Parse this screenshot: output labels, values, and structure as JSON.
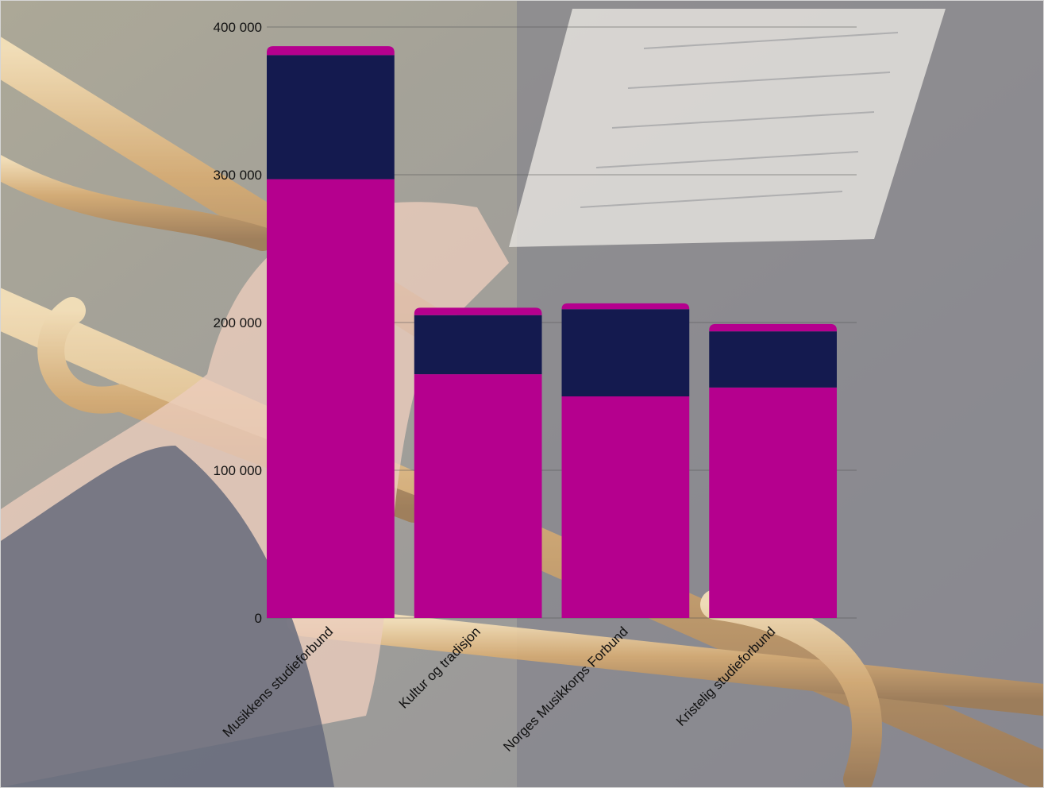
{
  "chart_data": {
    "type": "bar",
    "stacked": true,
    "background": "photo of a hand holding a brass trumpet with a music stand and sheet music, shown faded",
    "title": "",
    "xlabel": "",
    "ylabel": "",
    "categories": [
      "Musikkens studieforbund",
      "Kultur og tradisjon",
      "Norges Musikkorps Forbund",
      "Kristelig studieforbund"
    ],
    "series": [
      {
        "color": "#b5008e",
        "values": [
          297000,
          165000,
          150000,
          156000
        ]
      },
      {
        "color": "#141a4f",
        "values": [
          84000,
          40000,
          59000,
          38000
        ]
      },
      {
        "color": "#b5008e",
        "values": [
          6000,
          5000,
          4000,
          5000
        ]
      }
    ],
    "ylim": [
      0,
      400000
    ],
    "yticks": [
      0,
      100000,
      200000,
      300000,
      400000
    ],
    "ytick_labels": [
      "0",
      "100 000",
      "200 000",
      "300 000",
      "400 000"
    ],
    "grid": true,
    "legend": "none"
  }
}
